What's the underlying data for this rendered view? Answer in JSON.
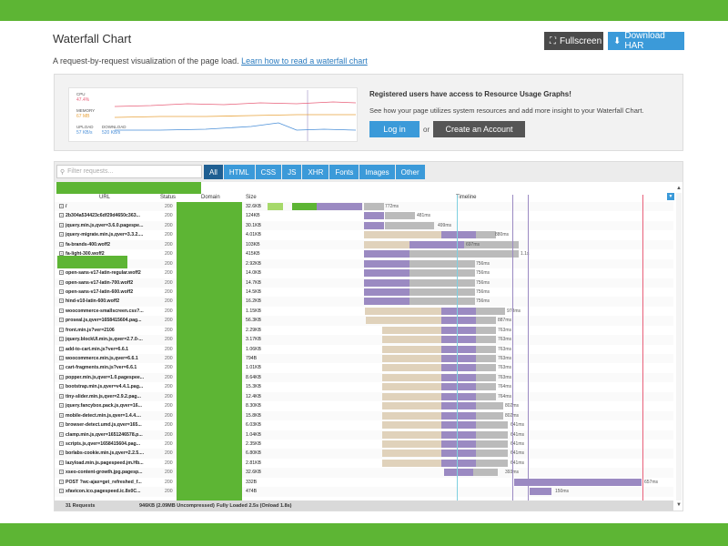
{
  "header": {
    "title": "Waterfall Chart",
    "fullscreen_label": "Fullscreen",
    "download_label": "Download HAR",
    "subtitle_text": "A request-by-request visualization of the page load.",
    "subtitle_link": "Learn how to read a waterfall chart"
  },
  "promo": {
    "chart_labels": {
      "cpu": "CPU",
      "cpu_value": "47.4%",
      "memory": "MEMORY",
      "memory_value": "67 MB",
      "upload": "UPLOAD",
      "upload_value": "57 KB/s",
      "download": "DOWNLOAD",
      "download_value": "520 KB/s"
    },
    "heading": "Registered users have access to Resource Usage Graphs!",
    "text": "See how your page utilizes system resources and add more insight to your Waterfall Chart.",
    "login_label": "Log in",
    "or_label": "or",
    "create_label": "Create an Account"
  },
  "waterfall": {
    "search_placeholder": "Filter requests...",
    "filters": [
      "All",
      "HTML",
      "CSS",
      "JS",
      "XHR",
      "Fonts",
      "Images",
      "Other"
    ],
    "columns": {
      "url": "URL",
      "status": "Status",
      "domain": "Domain",
      "size": "Size",
      "timeline": "Timeline"
    },
    "rows": [
      {
        "url": "/",
        "status": "200",
        "size": "32.6KB",
        "duration": "772ms"
      },
      {
        "url": "2b304a534423c6df29d4650c363...",
        "status": "200",
        "size": "124KB",
        "duration": "481ms"
      },
      {
        "url": "jquery.min.js,qver=3.6.0.pagespe...",
        "status": "200",
        "size": "30.1KB",
        "duration": "499ms"
      },
      {
        "url": "jquery-migrate.min.js,qver=3.3.2....",
        "status": "200",
        "size": "4.01KB",
        "duration": "880ms"
      },
      {
        "url": "fa-brands-400.woff2",
        "status": "200",
        "size": "103KB",
        "duration": "697ms"
      },
      {
        "url": "fa-light-300.woff2",
        "status": "200",
        "size": "415KB",
        "duration": "1.1s"
      },
      {
        "url": "",
        "status": "200",
        "size": "2.92KB",
        "duration": "756ms"
      },
      {
        "url": "open-sans-v17-latin-regular.woff2",
        "status": "200",
        "size": "14.0KB",
        "duration": "756ms"
      },
      {
        "url": "open-sans-v17-latin-700.woff2",
        "status": "200",
        "size": "14.7KB",
        "duration": "756ms"
      },
      {
        "url": "open-sans-v17-latin-600.woff2",
        "status": "200",
        "size": "14.5KB",
        "duration": "756ms"
      },
      {
        "url": "hind-v10-latin-600.woff2",
        "status": "200",
        "size": "16.2KB",
        "duration": "756ms"
      },
      {
        "url": "woocommerce-smallscreen.css?...",
        "status": "200",
        "size": "1.15KB",
        "duration": "978ms"
      },
      {
        "url": "proseal.js,qver=1658415604.pag...",
        "status": "200",
        "size": "56.3KB",
        "duration": "887ms"
      },
      {
        "url": "front.min.js?ver=2106",
        "status": "200",
        "size": "2.29KB",
        "duration": "763ms"
      },
      {
        "url": "jquery.blockUI.min.js,qver=2.7.0-...",
        "status": "200",
        "size": "3.17KB",
        "duration": "763ms"
      },
      {
        "url": "add-to-cart.min.js?ver=6.6.1",
        "status": "200",
        "size": "1.06KB",
        "duration": "763ms"
      },
      {
        "url": "woocommerce.min.js,qver=6.6.1",
        "status": "200",
        "size": "794B",
        "duration": "763ms"
      },
      {
        "url": "cart-fragments.min.js?ver=6.6.1",
        "status": "200",
        "size": "1.01KB",
        "duration": "763ms"
      },
      {
        "url": "popper.min.js,qver=1.0.pagespee...",
        "status": "200",
        "size": "8.64KB",
        "duration": "763ms"
      },
      {
        "url": "bootstrap.min.js,qver=v4.4.1.pag...",
        "status": "200",
        "size": "15.3KB",
        "duration": "764ms"
      },
      {
        "url": "tiny-slider.min.js,qver=2.9.2.pag...",
        "status": "200",
        "size": "12.4KB",
        "duration": "764ms"
      },
      {
        "url": "jquery.fancybox.pack.js,qver=16...",
        "status": "200",
        "size": "8.30KB",
        "duration": "802ms"
      },
      {
        "url": "mobile-detect.min.js,qver=1.4.4....",
        "status": "200",
        "size": "15.8KB",
        "duration": "802ms"
      },
      {
        "url": "browser-detect.umd.js,qver=165...",
        "status": "200",
        "size": "6.03KB",
        "duration": "641ms"
      },
      {
        "url": "clamp.min.js,qver=1651246578.p...",
        "status": "200",
        "size": "1.04KB",
        "duration": "641ms"
      },
      {
        "url": "scripts.js,qver=1658415604.pag...",
        "status": "200",
        "size": "2.35KB",
        "duration": "641ms"
      },
      {
        "url": "borlabs-cookie.min.js,qver=2.2.5....",
        "status": "200",
        "size": "6.80KB",
        "duration": "641ms"
      },
      {
        "url": "lazyload.min.js.pagespeed.jm.Hb...",
        "status": "200",
        "size": "2.81KB",
        "duration": "641ms"
      },
      {
        "url": "xseo-content-growth.jpg.pagesp...",
        "status": "200",
        "size": "32.6KB",
        "duration": "393ms"
      },
      {
        "url": "POST ?wc-ajax=get_refreshed_f...",
        "status": "200",
        "size": "332B",
        "duration": "657ms"
      },
      {
        "url": "xfavicon.ico.pagespeed.ic.8x0C...",
        "status": "200",
        "size": "474B",
        "duration": "150ms"
      }
    ],
    "footer": {
      "requests": "31 Requests",
      "size": "946KB (2.09MB Uncompressed)",
      "loaded": "Fully Loaded 2.5s (Onload 1.8s)"
    }
  },
  "colors": {
    "brand_green": "#5db534",
    "accent_blue": "#3b9ad9",
    "purple": "#9b8ac2",
    "tan": "#e0d2bb",
    "gray": "#bbbbbb"
  }
}
